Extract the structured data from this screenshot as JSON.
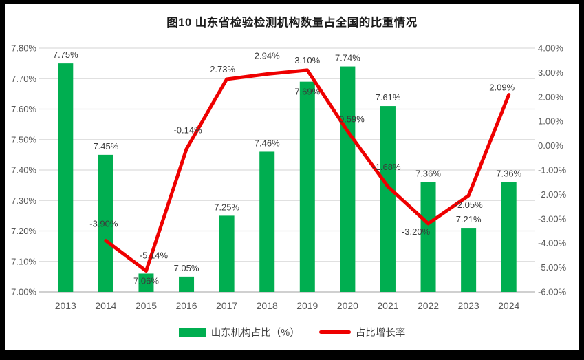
{
  "title": "图10  山东省检验检测机构数量占全国的比重情况",
  "legend": {
    "bar_label": "山东机构占比（%）",
    "line_label": "占比增长率"
  },
  "colors": {
    "bar": "#00AE50",
    "line": "#EE0000",
    "grid": "#DCDCDC",
    "axis_line": "#C0C0C0",
    "axis_text": "#595959",
    "label_text": "#3A3A3A"
  },
  "chart_data": {
    "type": "bar+line combo",
    "title": "图10  山东省检验检测机构数量占全国的比重情况",
    "categories": [
      "2013",
      "2014",
      "2015",
      "2016",
      "2017",
      "2018",
      "2019",
      "2020",
      "2021",
      "2022",
      "2023",
      "2024"
    ],
    "series": [
      {
        "name": "山东机构占比（%）",
        "type": "bar",
        "axis": "left",
        "values": [
          7.75,
          7.45,
          7.06,
          7.05,
          7.25,
          7.46,
          7.69,
          7.74,
          7.61,
          7.36,
          7.21,
          7.36
        ],
        "labels": [
          "7.75%",
          "7.45%",
          "7.06%",
          "7.05%",
          "7.25%",
          "7.46%",
          "7.69%",
          "7.74%",
          "7.61%",
          "7.36%",
          "7.21%",
          "7.36%"
        ]
      },
      {
        "name": "占比增长率",
        "type": "line",
        "axis": "right",
        "values": [
          null,
          -3.9,
          -5.14,
          -0.14,
          2.73,
          2.94,
          3.1,
          0.59,
          -1.68,
          -3.2,
          -2.05,
          2.09
        ],
        "labels": [
          null,
          "-3.90%",
          "-5.14%",
          "-0.14%",
          "2.73%",
          "2.94%",
          "3.10%",
          "0.59%",
          "-1.68%",
          "-3.20%",
          "-2.05%",
          "2.09%"
        ]
      }
    ],
    "left_axis": {
      "min": 7.0,
      "max": 7.8,
      "step": 0.1,
      "ticks": [
        "7.80%",
        "7.70%",
        "7.60%",
        "7.50%",
        "7.40%",
        "7.30%",
        "7.20%",
        "7.10%",
        "7.00%"
      ]
    },
    "right_axis": {
      "min": -6.0,
      "max": 4.0,
      "step": 1.0,
      "ticks": [
        "4.00%",
        "3.00%",
        "2.00%",
        "1.00%",
        "0.00%",
        "-1.00%",
        "-2.00%",
        "-3.00%",
        "-4.00%",
        "-5.00%",
        "-6.00%"
      ]
    },
    "grid": true,
    "legend_position": "bottom"
  }
}
